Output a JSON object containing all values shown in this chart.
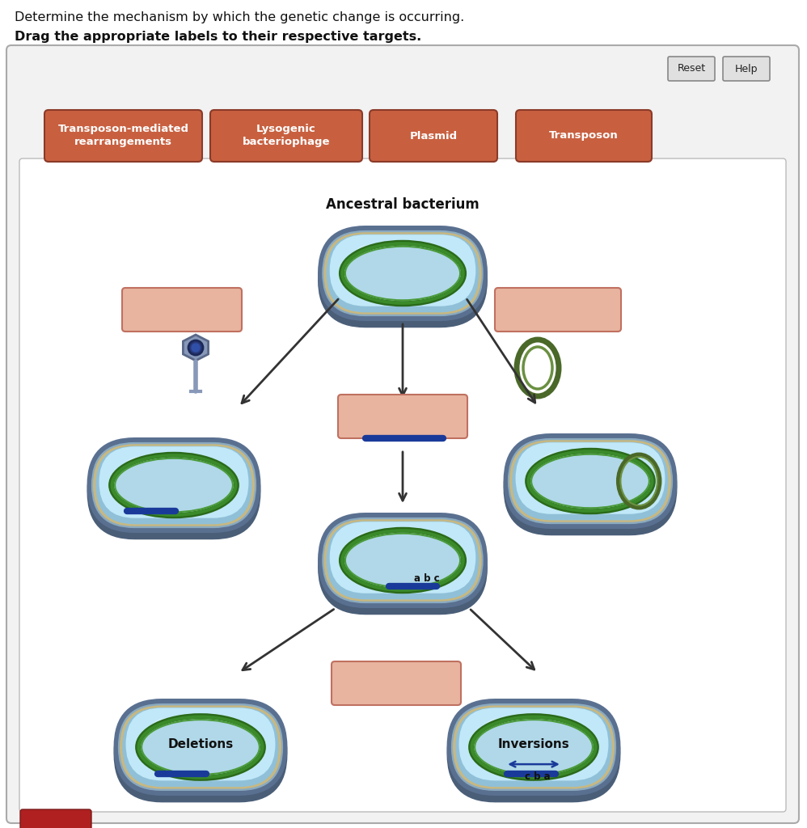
{
  "title_line1": "Determine the mechanism by which the genetic change is occurring.",
  "title_line2": "Drag the appropriate labels to their respective targets.",
  "label_buttons": [
    "Transposon-mediated\nrearrangements",
    "Lysogenic\nbacteriophage",
    "Plasmid",
    "Transposon"
  ],
  "label_button_color": "#c8604a",
  "label_button_border": "#8b3a2a",
  "empty_box_color": "#e8b4a0",
  "empty_box_border": "#c87060",
  "reset_help_bg": "#e8e8e8",
  "bact_outer1": "#5a6e88",
  "bact_outer2": "#8aa0b8",
  "bact_tan": "#c8b890",
  "bact_inner": "#a8d0e8",
  "bact_light": "#c8eaf8",
  "chr_green_dark": "#2a6a1a",
  "chr_green_mid": "#3a8a2a",
  "chr_inner_fill": "#a0d8e8",
  "blue_seg": "#1a3a9a",
  "plasmid_olive": "#5a7030",
  "arrow_color": "#333333",
  "phage_dark": "#3a4878",
  "phage_mid": "#4a5890",
  "phage_gray": "#8898b0",
  "deletions_text": "Deletions",
  "inversions_text": "Inversions",
  "abc_text": "a b c",
  "cba_text": "c b a",
  "ancestral_text": "Ancestral bacterium"
}
